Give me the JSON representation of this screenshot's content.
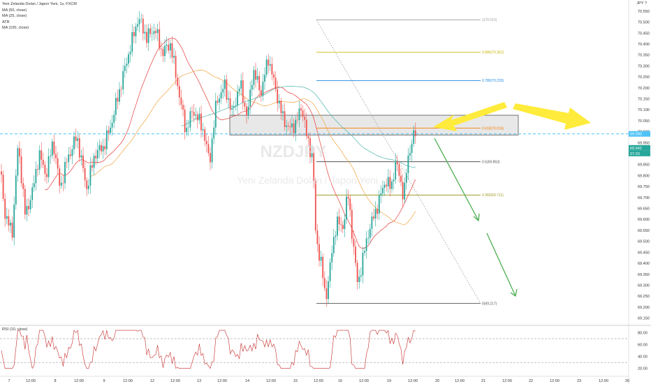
{
  "header": {
    "symbol_title": "Yeni Zelanda Dolan / Japon Yeni, 1s, FXCM",
    "indicators": [
      "MA (50, close)",
      "MA (25, close)",
      "ATR",
      "MA (100, close)"
    ],
    "currency": "JPY",
    "help_icon": "?"
  },
  "watermark": {
    "symbol": "NZDJPY",
    "name": "Yeni Zelanda Dolan / Japon Yeni"
  },
  "rsi_panel": {
    "label": "RSI (10, close)"
  },
  "colors": {
    "candle_up": "#26a69a",
    "candle_down": "#ef5350",
    "ma_red": "#e53935",
    "ma_orange": "#f0a340",
    "ma_teal": "#4db6ac",
    "current_price_line": "#4fc3f7",
    "arrow_yellow": "#ffeb3b",
    "arrow_green": "#4caf50",
    "rsi_line": "#c62828",
    "zone_fill": "#d8d8d8"
  },
  "chart_data": {
    "type": "candlestick",
    "price_axis": {
      "ticks": [
        "70.550",
        "70.500",
        "70.450",
        "70.400",
        "70.350",
        "70.300",
        "70.250",
        "70.200",
        "70.150",
        "70.100",
        "70.050",
        "70.000",
        "69.950",
        "69.900",
        "69.850",
        "69.800",
        "69.750",
        "69.700",
        "69.650",
        "69.600",
        "69.550",
        "69.500",
        "69.450",
        "69.400",
        "69.350",
        "69.300",
        "69.250",
        "69.200",
        "69.150"
      ],
      "range": [
        69.12,
        70.575
      ]
    },
    "time_axis": {
      "ticks": [
        "7",
        "12:00",
        "8",
        "12:00",
        "9",
        "12:00",
        "12",
        "12:00",
        "13",
        "12:00",
        "14",
        "12:00",
        "15",
        "12:00",
        "16",
        "12:00",
        "19",
        "12:00",
        "20",
        "12:00",
        "21",
        "12:00",
        "22",
        "12:00",
        "23",
        "12:00",
        "26"
      ]
    },
    "price_labels": {
      "current": "69.990",
      "last": "69.942",
      "countdown": "07:29"
    },
    "fib_levels": [
      {
        "ratio": "1",
        "price": 70.51,
        "label": "1(70.510)",
        "color": "#9e9e9e"
      },
      {
        "ratio": "0.886",
        "price": 70.362,
        "label": "0.886(70.362)",
        "color": "#c8b400"
      },
      {
        "ratio": "0.786",
        "price": 70.233,
        "label": "0.786(70.233)",
        "color": "#1e88e5"
      },
      {
        "ratio": "0.618",
        "price": 70.016,
        "label": "0.618(70.016)",
        "color": "#f57c00"
      },
      {
        "ratio": "0.5",
        "price": 69.863,
        "label": "0.5(69.863)",
        "color": "#555555"
      },
      {
        "ratio": "0.382",
        "price": 69.711,
        "label": "0.382(69.711)",
        "color": "#9e9d24"
      },
      {
        "ratio": "0",
        "price": 69.217,
        "label": "0(69.217)",
        "color": "#555555"
      }
    ],
    "resistance_zone": {
      "from": 69.985,
      "to": 70.075
    },
    "current_price": 69.99,
    "candles": [],
    "rsi": {
      "ticks": [
        "80.00",
        "60.00",
        "40.00",
        "20.00"
      ],
      "range": [
        15,
        90
      ],
      "levels": [
        70,
        30
      ],
      "values": []
    }
  }
}
